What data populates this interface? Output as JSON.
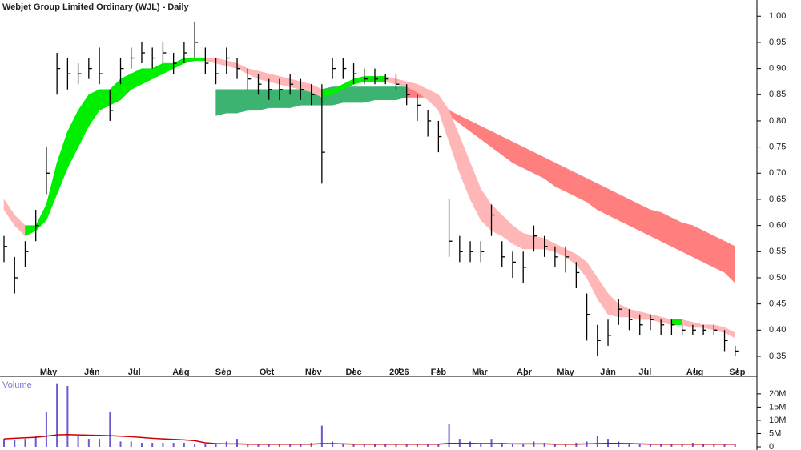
{
  "chart_data": {
    "type": "ohlc",
    "title": "Webjet Group Limited Ordinary (WJL) - Daily",
    "xlim": [
      0,
      70
    ],
    "xticks": [
      {
        "value": 4.2,
        "label": "May"
      },
      {
        "value": 8.3,
        "label": "Jun"
      },
      {
        "value": 12.3,
        "label": "Jul"
      },
      {
        "value": 16.7,
        "label": "Aug"
      },
      {
        "value": 20.7,
        "label": "Sep"
      },
      {
        "value": 24.8,
        "label": "Oct"
      },
      {
        "value": 29.2,
        "label": "Nov"
      },
      {
        "value": 33,
        "label": "Dec"
      },
      {
        "value": 37.3,
        "label": "2026"
      },
      {
        "value": 41,
        "label": "Feb"
      },
      {
        "value": 44.9,
        "label": "Mar"
      },
      {
        "value": 49.1,
        "label": "Apr"
      },
      {
        "value": 53,
        "label": "May"
      },
      {
        "value": 57,
        "label": "Jun"
      },
      {
        "value": 60.5,
        "label": "Jul"
      },
      {
        "value": 65.2,
        "label": "Aug"
      },
      {
        "value": 69.2,
        "label": "Sep"
      }
    ],
    "ylim": [
      0.327,
      1.031
    ],
    "yticks": [
      0.35,
      {
        "value": 0.4,
        "label": "0.40"
      },
      0.45,
      {
        "value": 0.5,
        "label": "0.50"
      },
      0.55,
      {
        "value": 0.6,
        "label": "0.60"
      },
      0.65,
      {
        "value": 0.7,
        "label": "0.70"
      },
      0.75,
      {
        "value": 0.8,
        "label": "0.80"
      },
      0.85,
      {
        "value": 0.9,
        "label": "0.90"
      },
      0.95,
      {
        "value": 1,
        "label": "1.00"
      }
    ],
    "price": {
      "color": "#000000",
      "close": [
        0.56,
        0.5,
        0.55,
        0.6,
        0.7,
        0.9,
        0.89,
        0.89,
        0.9,
        0.89,
        0.82,
        0.9,
        0.92,
        0.93,
        0.92,
        0.93,
        0.91,
        0.93,
        0.95,
        0.91,
        0.89,
        0.92,
        0.9,
        0.88,
        0.87,
        0.86,
        0.86,
        0.87,
        0.86,
        0.85,
        0.74,
        0.9,
        0.9,
        0.89,
        0.88,
        0.88,
        0.88,
        0.87,
        0.85,
        0.83,
        0.8,
        0.77,
        0.57,
        0.55,
        0.55,
        0.55,
        0.62,
        0.54,
        0.53,
        0.52,
        0.58,
        0.56,
        0.54,
        0.54,
        0.51,
        0.43,
        0.38,
        0.39,
        0.44,
        0.42,
        0.41,
        0.42,
        0.41,
        0.41,
        0.4,
        0.4,
        0.4,
        0.4,
        0.38,
        0.36
      ],
      "high": [
        0.58,
        0.54,
        0.57,
        0.63,
        0.75,
        0.93,
        0.92,
        0.91,
        0.92,
        0.94,
        0.86,
        0.92,
        0.94,
        0.95,
        0.94,
        0.95,
        0.93,
        0.95,
        0.99,
        0.94,
        0.92,
        0.94,
        0.92,
        0.9,
        0.89,
        0.88,
        0.88,
        0.89,
        0.88,
        0.87,
        0.87,
        0.92,
        0.92,
        0.91,
        0.9,
        0.9,
        0.89,
        0.89,
        0.87,
        0.85,
        0.82,
        0.8,
        0.65,
        0.58,
        0.57,
        0.57,
        0.64,
        0.57,
        0.55,
        0.55,
        0.6,
        0.58,
        0.56,
        0.56,
        0.53,
        0.47,
        0.41,
        0.42,
        0.46,
        0.44,
        0.43,
        0.43,
        0.42,
        0.42,
        0.41,
        0.41,
        0.41,
        0.41,
        0.4,
        0.37
      ],
      "low": [
        0.53,
        0.47,
        0.52,
        0.57,
        0.66,
        0.85,
        0.86,
        0.87,
        0.88,
        0.87,
        0.8,
        0.87,
        0.9,
        0.91,
        0.9,
        0.91,
        0.89,
        0.91,
        0.92,
        0.89,
        0.87,
        0.89,
        0.88,
        0.86,
        0.85,
        0.84,
        0.84,
        0.85,
        0.84,
        0.83,
        0.68,
        0.88,
        0.88,
        0.87,
        0.87,
        0.87,
        0.87,
        0.86,
        0.83,
        0.8,
        0.77,
        0.74,
        0.54,
        0.53,
        0.53,
        0.53,
        0.58,
        0.52,
        0.5,
        0.49,
        0.55,
        0.54,
        0.52,
        0.51,
        0.48,
        0.38,
        0.35,
        0.37,
        0.41,
        0.4,
        0.39,
        0.4,
        0.39,
        0.39,
        0.39,
        0.39,
        0.39,
        0.39,
        0.36,
        0.35
      ]
    },
    "ribbons": [
      {
        "rising_color": "#00ee00",
        "falling_color": "#ffb6b6",
        "upper": [
          0.65,
          0.62,
          0.6,
          0.6,
          0.64,
          0.72,
          0.78,
          0.82,
          0.85,
          0.86,
          0.86,
          0.88,
          0.89,
          0.9,
          0.9,
          0.91,
          0.91,
          0.92,
          0.92,
          0.92,
          0.92,
          0.915,
          0.91,
          0.9,
          0.895,
          0.89,
          0.885,
          0.88,
          0.875,
          0.87,
          0.86,
          0.86,
          0.87,
          0.88,
          0.885,
          0.885,
          0.885,
          0.88,
          0.875,
          0.87,
          0.86,
          0.85,
          0.82,
          0.77,
          0.72,
          0.67,
          0.64,
          0.62,
          0.6,
          0.585,
          0.58,
          0.575,
          0.565,
          0.555,
          0.545,
          0.53,
          0.5,
          0.47,
          0.45,
          0.44,
          0.435,
          0.43,
          0.425,
          0.42,
          0.42,
          0.415,
          0.41,
          0.41,
          0.405,
          0.395
        ],
        "lower": [
          0.63,
          0.6,
          0.58,
          0.59,
          0.61,
          0.66,
          0.71,
          0.75,
          0.79,
          0.82,
          0.83,
          0.84,
          0.86,
          0.87,
          0.88,
          0.89,
          0.9,
          0.91,
          0.915,
          0.915,
          0.91,
          0.905,
          0.9,
          0.89,
          0.88,
          0.875,
          0.87,
          0.865,
          0.86,
          0.855,
          0.845,
          0.85,
          0.86,
          0.87,
          0.875,
          0.875,
          0.875,
          0.87,
          0.865,
          0.855,
          0.84,
          0.82,
          0.76,
          0.7,
          0.65,
          0.61,
          0.59,
          0.58,
          0.565,
          0.555,
          0.555,
          0.555,
          0.55,
          0.54,
          0.525,
          0.5,
          0.46,
          0.43,
          0.425,
          0.425,
          0.42,
          0.42,
          0.415,
          0.41,
          0.41,
          0.405,
          0.405,
          0.4,
          0.395,
          0.385
        ]
      },
      {
        "rising_color": "#3cb371",
        "falling_color": "#ff7f7f",
        "upper": [
          null,
          null,
          null,
          null,
          null,
          null,
          null,
          null,
          null,
          null,
          null,
          null,
          null,
          null,
          null,
          null,
          null,
          null,
          null,
          null,
          0.86,
          0.86,
          0.86,
          0.86,
          0.86,
          0.86,
          0.86,
          0.86,
          0.86,
          0.86,
          0.86,
          0.865,
          0.865,
          0.865,
          0.865,
          0.865,
          0.865,
          0.865,
          0.865,
          0.86,
          0.855,
          0.845,
          0.82,
          0.81,
          0.8,
          0.79,
          0.78,
          0.77,
          0.76,
          0.75,
          0.74,
          0.73,
          0.72,
          0.71,
          0.7,
          0.69,
          0.68,
          0.67,
          0.66,
          0.65,
          0.64,
          0.63,
          0.625,
          0.615,
          0.605,
          0.6,
          0.59,
          0.58,
          0.57,
          0.56
        ],
        "lower": [
          null,
          null,
          null,
          null,
          null,
          null,
          null,
          null,
          null,
          null,
          null,
          null,
          null,
          null,
          null,
          null,
          null,
          null,
          null,
          null,
          0.81,
          0.815,
          0.815,
          0.82,
          0.82,
          0.825,
          0.825,
          0.825,
          0.83,
          0.83,
          0.83,
          0.83,
          0.835,
          0.835,
          0.835,
          0.84,
          0.84,
          0.84,
          0.845,
          0.845,
          0.845,
          0.84,
          0.81,
          0.795,
          0.78,
          0.765,
          0.75,
          0.735,
          0.72,
          0.71,
          0.7,
          0.69,
          0.675,
          0.665,
          0.655,
          0.645,
          0.63,
          0.62,
          0.61,
          0.6,
          0.59,
          0.58,
          0.57,
          0.56,
          0.55,
          0.54,
          0.53,
          0.52,
          0.51,
          0.49
        ]
      }
    ],
    "volume": {
      "title": "Volume",
      "color": "#6a5acd",
      "ma_color": "#cc0000",
      "ylim": [
        0,
        24.5
      ],
      "yticks": [
        0,
        {
          "value": 5,
          "label": "5M"
        },
        {
          "value": 10,
          "label": "10M"
        },
        {
          "value": 15,
          "label": "15M"
        },
        {
          "value": 20,
          "label": "20M"
        }
      ],
      "values": [
        3,
        2.5,
        3,
        4,
        13,
        24,
        23,
        4,
        3,
        3,
        13,
        2,
        2,
        1.5,
        1.5,
        1.5,
        1.5,
        1.5,
        1,
        1,
        1,
        2,
        3,
        1,
        1,
        1,
        1,
        1,
        1,
        1.5,
        8,
        2,
        1,
        1,
        1,
        1,
        1,
        1,
        1,
        1,
        1,
        1,
        8.5,
        3,
        2,
        1.5,
        3,
        1.5,
        1,
        1,
        2,
        1.5,
        1,
        1,
        1.5,
        2,
        4,
        3,
        2,
        1.5,
        1,
        1,
        1,
        1,
        1,
        1.5,
        1,
        1,
        1,
        1
      ],
      "ma": [
        3,
        3.2,
        3.4,
        3.6,
        4,
        4.5,
        4.6,
        4.5,
        4.4,
        4.3,
        4.2,
        4,
        3.8,
        3.5,
        3.2,
        3,
        2.8,
        2.6,
        2.3,
        1.5,
        1.2,
        1.1,
        1.1,
        1,
        1,
        1,
        1,
        1,
        1,
        1,
        1.2,
        1.2,
        1.1,
        1,
        1,
        1,
        1,
        1,
        1,
        1,
        1,
        1,
        1.3,
        1.3,
        1.3,
        1.2,
        1.2,
        1.2,
        1.1,
        1.1,
        1.1,
        1.1,
        1,
        1,
        1,
        1.1,
        1.2,
        1.3,
        1.3,
        1.2,
        1.1,
        1,
        1,
        1,
        1,
        1,
        1,
        1,
        1,
        1
      ]
    }
  }
}
